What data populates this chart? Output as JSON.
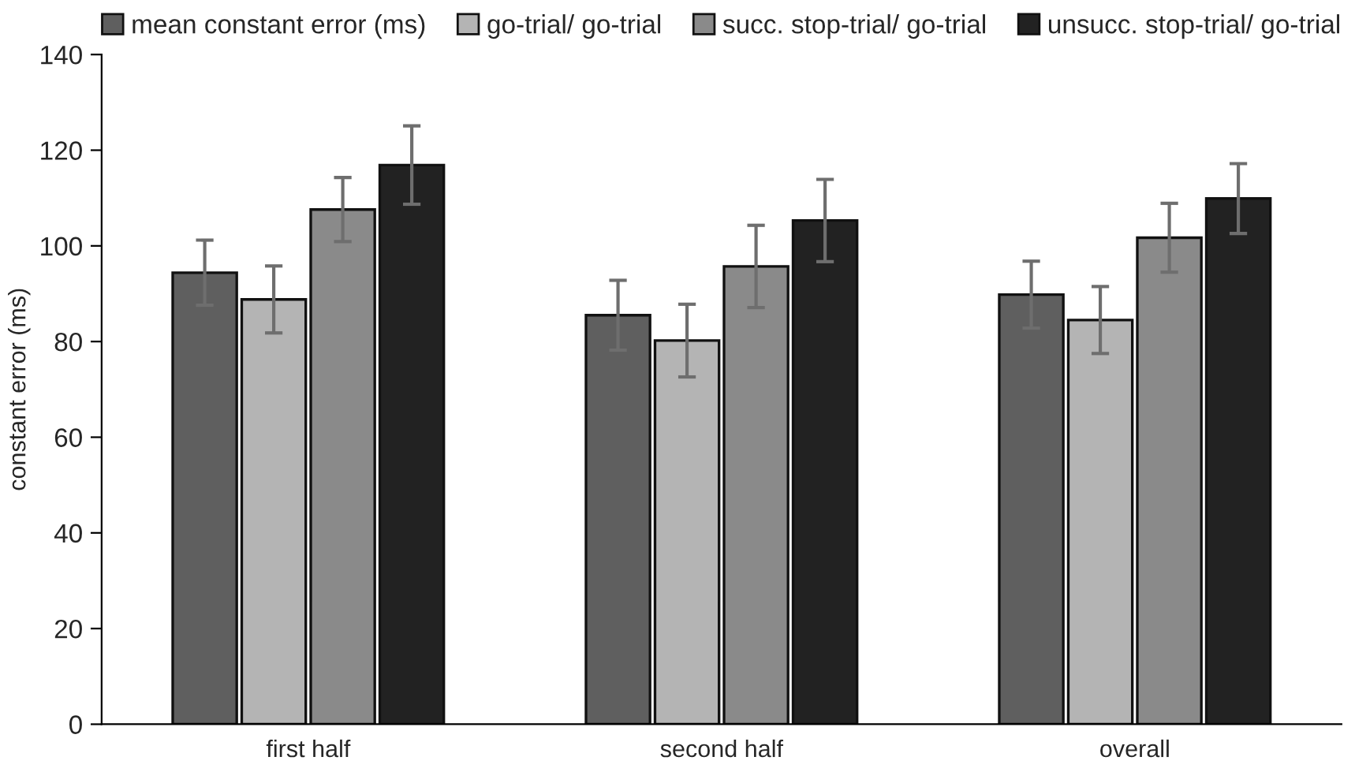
{
  "chart_data": {
    "type": "bar",
    "ylabel": "constant error (ms)",
    "categories": [
      "first half",
      "second half",
      "overall"
    ],
    "series": [
      {
        "name": "mean constant error (ms)",
        "color": "#5f5f5f",
        "values": [
          94.4,
          85.5,
          89.8
        ],
        "errors": [
          6.8,
          7.3,
          7.0
        ]
      },
      {
        "name": "go-trial/ go-trial",
        "color": "#b4b4b4",
        "values": [
          88.8,
          80.2,
          84.5
        ],
        "errors": [
          7.0,
          7.6,
          7.0
        ]
      },
      {
        "name": "succ. stop-trial/ go-trial",
        "color": "#8a8a8a",
        "values": [
          107.6,
          95.7,
          101.7
        ],
        "errors": [
          6.7,
          8.6,
          7.2
        ]
      },
      {
        "name": "unsucc. stop-trial/ go-trial",
        "color": "#222222",
        "values": [
          116.9,
          105.3,
          109.9
        ],
        "errors": [
          8.2,
          8.6,
          7.3
        ]
      }
    ],
    "ylim": [
      0,
      140
    ],
    "yticks": [
      0,
      20,
      40,
      60,
      80,
      100,
      120,
      140
    ],
    "grid": false,
    "legend": "top"
  }
}
